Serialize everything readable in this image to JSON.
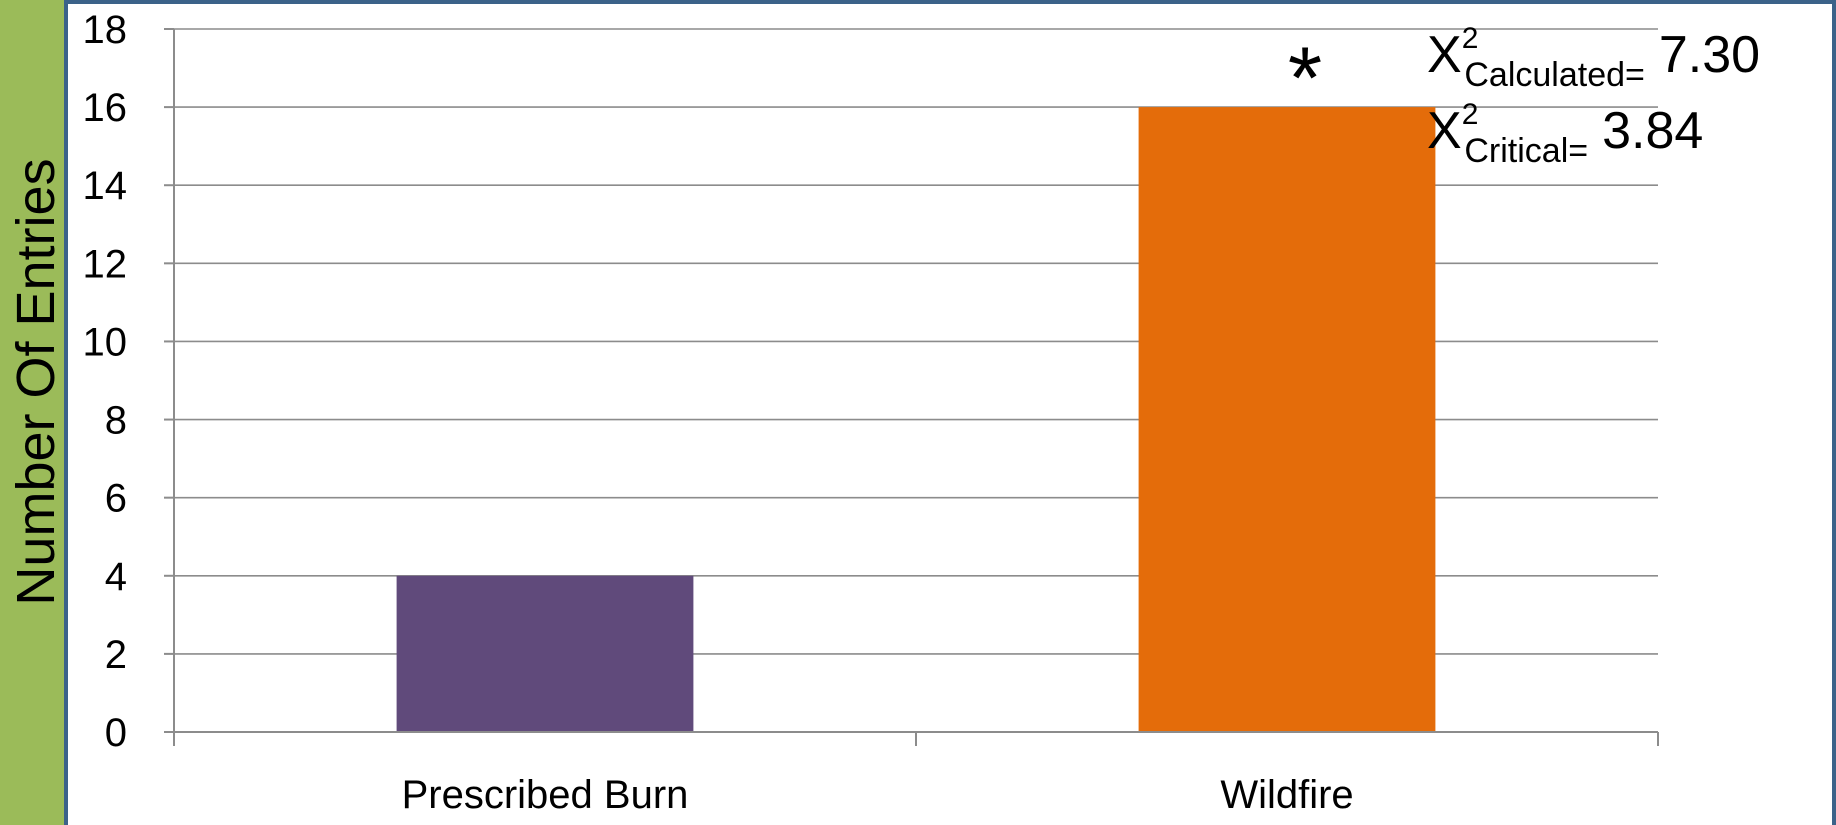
{
  "chart_data": {
    "type": "bar",
    "categories": [
      "Prescribed Burn",
      "Wildfire"
    ],
    "values": [
      4,
      16
    ],
    "colors": [
      "#604a7b",
      "#e46c0a"
    ],
    "xlabel": "",
    "ylabel": "Number Of Entries",
    "ylim": [
      0,
      18
    ],
    "yticks": [
      0,
      2,
      4,
      6,
      8,
      10,
      12,
      14,
      16,
      18
    ],
    "grid": true,
    "legend": "none",
    "significance_marker": "*",
    "annotations": {
      "calc_base": "X",
      "calc_sup": "2",
      "calc_sub": "Calculated=",
      "calc_value": "7.30",
      "crit_base": "X",
      "crit_sup": "2",
      "crit_sub": "Critical=",
      "crit_value": "3.84"
    }
  }
}
